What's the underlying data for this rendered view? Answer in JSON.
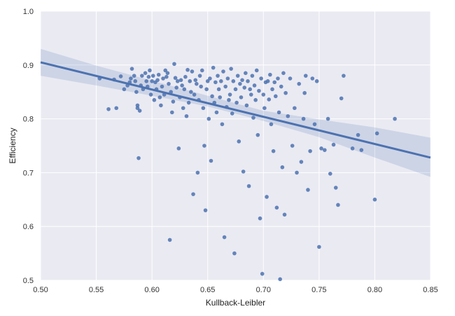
{
  "chart_data": {
    "type": "scatter",
    "title": "",
    "xlabel": "Kullback-Leibler",
    "ylabel": "Efficiency",
    "xlim": [
      0.5,
      0.85
    ],
    "ylim": [
      0.5,
      1.0
    ],
    "xticks": [
      "0.50",
      "0.55",
      "0.60",
      "0.65",
      "0.70",
      "0.75",
      "0.80",
      "0.85"
    ],
    "yticks": [
      "0.5",
      "0.6",
      "0.7",
      "0.8",
      "0.9",
      "1.0"
    ],
    "grid": true,
    "style": "seaborn-darkgrid",
    "colors": {
      "plot_background": "#eaeaf2",
      "grid": "#ffffff",
      "points": "#4c72b0",
      "regression_line": "#4c72b0",
      "confidence_band": "#4c72b0"
    },
    "regression": {
      "line_points": [
        [
          0.5,
          0.905
        ],
        [
          0.85,
          0.728
        ]
      ],
      "confidence_band": {
        "x": [
          0.5,
          0.55,
          0.6,
          0.65,
          0.7,
          0.75,
          0.8,
          0.85
        ],
        "lower": [
          0.88,
          0.862,
          0.843,
          0.823,
          0.796,
          0.766,
          0.728,
          0.692
        ],
        "upper": [
          0.93,
          0.899,
          0.871,
          0.843,
          0.815,
          0.799,
          0.784,
          0.765
        ]
      }
    },
    "points": [
      [
        0.553,
        0.875
      ],
      [
        0.561,
        0.818
      ],
      [
        0.566,
        0.873
      ],
      [
        0.568,
        0.82
      ],
      [
        0.572,
        0.879
      ],
      [
        0.575,
        0.855
      ],
      [
        0.578,
        0.862
      ],
      [
        0.58,
        0.868
      ],
      [
        0.581,
        0.875
      ],
      [
        0.582,
        0.893
      ],
      [
        0.584,
        0.88
      ],
      [
        0.585,
        0.87
      ],
      [
        0.586,
        0.85
      ],
      [
        0.587,
        0.825
      ],
      [
        0.587,
        0.82
      ],
      [
        0.588,
        0.727
      ],
      [
        0.589,
        0.815
      ],
      [
        0.59,
        0.862
      ],
      [
        0.591,
        0.88
      ],
      [
        0.592,
        0.855
      ],
      [
        0.594,
        0.885
      ],
      [
        0.595,
        0.87
      ],
      [
        0.596,
        0.86
      ],
      [
        0.597,
        0.878
      ],
      [
        0.598,
        0.89
      ],
      [
        0.599,
        0.845
      ],
      [
        0.6,
        0.87
      ],
      [
        0.601,
        0.88
      ],
      [
        0.602,
        0.835
      ],
      [
        0.603,
        0.868
      ],
      [
        0.604,
        0.855
      ],
      [
        0.605,
        0.872
      ],
      [
        0.606,
        0.882
      ],
      [
        0.607,
        0.84
      ],
      [
        0.608,
        0.825
      ],
      [
        0.609,
        0.86
      ],
      [
        0.61,
        0.875
      ],
      [
        0.611,
        0.845
      ],
      [
        0.612,
        0.89
      ],
      [
        0.613,
        0.878
      ],
      [
        0.614,
        0.885
      ],
      [
        0.615,
        0.865
      ],
      [
        0.616,
        0.575
      ],
      [
        0.617,
        0.85
      ],
      [
        0.618,
        0.812
      ],
      [
        0.619,
        0.832
      ],
      [
        0.62,
        0.902
      ],
      [
        0.621,
        0.876
      ],
      [
        0.622,
        0.858
      ],
      [
        0.623,
        0.87
      ],
      [
        0.624,
        0.745
      ],
      [
        0.625,
        0.84
      ],
      [
        0.626,
        0.872
      ],
      [
        0.627,
        0.862
      ],
      [
        0.628,
        0.82
      ],
      [
        0.629,
        0.855
      ],
      [
        0.63,
        0.878
      ],
      [
        0.631,
        0.805
      ],
      [
        0.632,
        0.891
      ],
      [
        0.633,
        0.83
      ],
      [
        0.634,
        0.87
      ],
      [
        0.635,
        0.85
      ],
      [
        0.636,
        0.888
      ],
      [
        0.637,
        0.66
      ],
      [
        0.638,
        0.845
      ],
      [
        0.639,
        0.872
      ],
      [
        0.64,
        0.865
      ],
      [
        0.641,
        0.7
      ],
      [
        0.642,
        0.835
      ],
      [
        0.643,
        0.88
      ],
      [
        0.644,
        0.86
      ],
      [
        0.645,
        0.89
      ],
      [
        0.646,
        0.82
      ],
      [
        0.647,
        0.75
      ],
      [
        0.648,
        0.63
      ],
      [
        0.649,
        0.855
      ],
      [
        0.65,
        0.87
      ],
      [
        0.651,
        0.8
      ],
      [
        0.652,
        0.875
      ],
      [
        0.653,
        0.722
      ],
      [
        0.654,
        0.842
      ],
      [
        0.655,
        0.895
      ],
      [
        0.656,
        0.83
      ],
      [
        0.657,
        0.868
      ],
      [
        0.658,
        0.812
      ],
      [
        0.659,
        0.88
      ],
      [
        0.66,
        0.855
      ],
      [
        0.661,
        0.84
      ],
      [
        0.662,
        0.87
      ],
      [
        0.663,
        0.79
      ],
      [
        0.664,
        0.888
      ],
      [
        0.665,
        0.58
      ],
      [
        0.666,
        0.86
      ],
      [
        0.667,
        0.822
      ],
      [
        0.668,
        0.875
      ],
      [
        0.669,
        0.835
      ],
      [
        0.67,
        0.845
      ],
      [
        0.671,
        0.893
      ],
      [
        0.672,
        0.81
      ],
      [
        0.673,
        0.87
      ],
      [
        0.674,
        0.55
      ],
      [
        0.675,
        0.855
      ],
      [
        0.676,
        0.83
      ],
      [
        0.677,
        0.88
      ],
      [
        0.678,
        0.758
      ],
      [
        0.679,
        0.865
      ],
      [
        0.68,
        0.84
      ],
      [
        0.681,
        0.872
      ],
      [
        0.682,
        0.702
      ],
      [
        0.683,
        0.858
      ],
      [
        0.684,
        0.885
      ],
      [
        0.685,
        0.825
      ],
      [
        0.686,
        0.87
      ],
      [
        0.687,
        0.675
      ],
      [
        0.688,
        0.855
      ],
      [
        0.689,
        0.845
      ],
      [
        0.69,
        0.88
      ],
      [
        0.691,
        0.802
      ],
      [
        0.692,
        0.862
      ],
      [
        0.693,
        0.835
      ],
      [
        0.694,
        0.89
      ],
      [
        0.695,
        0.77
      ],
      [
        0.696,
        0.852
      ],
      [
        0.697,
        0.615
      ],
      [
        0.698,
        0.875
      ],
      [
        0.699,
        0.512
      ],
      [
        0.7,
        0.845
      ],
      [
        0.701,
        0.82
      ],
      [
        0.702,
        0.868
      ],
      [
        0.703,
        0.655
      ],
      [
        0.704,
        0.87
      ],
      [
        0.705,
        0.836
      ],
      [
        0.706,
        0.882
      ],
      [
        0.707,
        0.79
      ],
      [
        0.708,
        0.855
      ],
      [
        0.709,
        0.74
      ],
      [
        0.71,
        0.868
      ],
      [
        0.711,
        0.842
      ],
      [
        0.712,
        0.635
      ],
      [
        0.713,
        0.875
      ],
      [
        0.714,
        0.812
      ],
      [
        0.715,
        0.502
      ],
      [
        0.716,
        0.86
      ],
      [
        0.717,
        0.71
      ],
      [
        0.718,
        0.885
      ],
      [
        0.719,
        0.622
      ],
      [
        0.72,
        0.848
      ],
      [
        0.722,
        0.805
      ],
      [
        0.724,
        0.875
      ],
      [
        0.726,
        0.75
      ],
      [
        0.728,
        0.82
      ],
      [
        0.73,
        0.7
      ],
      [
        0.732,
        0.865
      ],
      [
        0.734,
        0.72
      ],
      [
        0.736,
        0.8
      ],
      [
        0.737,
        0.848
      ],
      [
        0.738,
        0.88
      ],
      [
        0.74,
        0.668
      ],
      [
        0.742,
        0.74
      ],
      [
        0.744,
        0.875
      ],
      [
        0.746,
        0.79
      ],
      [
        0.748,
        0.87
      ],
      [
        0.75,
        0.562
      ],
      [
        0.752,
        0.745
      ],
      [
        0.755,
        0.742
      ],
      [
        0.758,
        0.8
      ],
      [
        0.76,
        0.698
      ],
      [
        0.763,
        0.752
      ],
      [
        0.765,
        0.672
      ],
      [
        0.767,
        0.64
      ],
      [
        0.77,
        0.838
      ],
      [
        0.772,
        0.88
      ],
      [
        0.78,
        0.745
      ],
      [
        0.785,
        0.77
      ],
      [
        0.788,
        0.742
      ],
      [
        0.8,
        0.65
      ],
      [
        0.802,
        0.773
      ],
      [
        0.818,
        0.8
      ]
    ]
  }
}
